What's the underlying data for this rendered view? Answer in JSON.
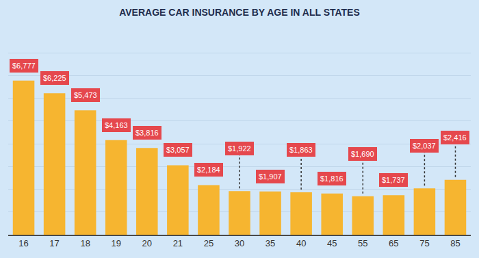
{
  "chart_data": {
    "type": "bar",
    "title": "AVERAGE CAR INSURANCE BY AGE IN ALL STATES",
    "categories": [
      "16",
      "17",
      "18",
      "19",
      "20",
      "21",
      "25",
      "30",
      "35",
      "40",
      "45",
      "55",
      "65",
      "75",
      "85"
    ],
    "values": [
      6777,
      6225,
      5473,
      4163,
      3816,
      3057,
      2184,
      1922,
      1907,
      1863,
      1816,
      1690,
      1737,
      2037,
      2416
    ],
    "value_labels": [
      "$6,777",
      "$6,225",
      "$5,473",
      "$4,163",
      "$3,816",
      "$3,057",
      "$2,184",
      "$1,922",
      "$1,907",
      "$1,863",
      "$1,816",
      "$1,690",
      "$1,737",
      "$2,037",
      "$2,416"
    ],
    "data_labels": true,
    "color": "#f6b530",
    "ylim": [
      0,
      9000
    ],
    "yticks": [
      0,
      1000,
      2000,
      3000,
      4000,
      5000,
      6000,
      7000,
      8000,
      9000
    ],
    "grid": true,
    "tick_labels": "x"
  }
}
